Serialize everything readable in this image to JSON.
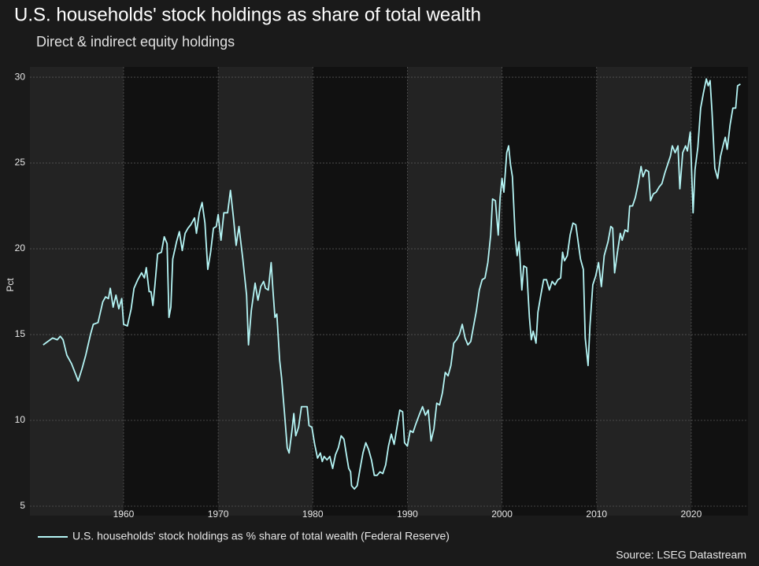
{
  "chart_data": {
    "type": "line",
    "title": "U.S. households' stock holdings as share of total wealth",
    "subtitle": "Direct & indirect equity holdings",
    "y_label": "Pct",
    "source": "Source: LSEG Datastream",
    "xlim": [
      1950.1,
      2026
    ],
    "xticks": [
      1960,
      1970,
      1980,
      1990,
      2000,
      2010,
      2020
    ],
    "ylim": [
      4.45,
      30.6
    ],
    "yticks": [
      5,
      10,
      15,
      20,
      25,
      30
    ],
    "grid": true,
    "x": [
      1951.5,
      1952.5,
      1953.0,
      1953.3,
      1953.6,
      1954,
      1954.5,
      1955,
      1955.2,
      1955.6,
      1956,
      1956.5,
      1956.8,
      1957.3,
      1957.8,
      1958.1,
      1958.4,
      1958.6,
      1958.9,
      1959.2,
      1959.5,
      1959.8,
      1960,
      1960.4,
      1960.8,
      1961.1,
      1961.5,
      1961.9,
      1962.2,
      1962.4,
      1962.7,
      1962.9,
      1963.1,
      1963.3,
      1963.6,
      1964,
      1964.3,
      1964.6,
      1964.8,
      1965,
      1965.2,
      1965.6,
      1965.9,
      1966.2,
      1966.5,
      1966.8,
      1967.1,
      1967.5,
      1967.7,
      1968,
      1968.3,
      1968.6,
      1968.9,
      1969.2,
      1969.5,
      1969.8,
      1970,
      1970.3,
      1970.6,
      1971,
      1971.3,
      1971.6,
      1971.9,
      1972.2,
      1972.6,
      1973,
      1973.2,
      1973.5,
      1973.9,
      1974.2,
      1974.5,
      1974.8,
      1975.0,
      1975.3,
      1975.6,
      1975.8,
      1976,
      1976.2,
      1976.5,
      1976.7,
      1977,
      1977.3,
      1977.5,
      1977.8,
      1978,
      1978.2,
      1978.5,
      1978.8,
      1979.1,
      1979.4,
      1979.6,
      1979.9,
      1980.2,
      1980.5,
      1980.8,
      1981,
      1981.2,
      1981.5,
      1981.8,
      1982.1,
      1982.4,
      1982.7,
      1983,
      1983.3,
      1983.5,
      1983.8,
      1984,
      1984.1,
      1984.4,
      1984.7,
      1985,
      1985.3,
      1985.6,
      1985.9,
      1986.2,
      1986.5,
      1986.8,
      1987.1,
      1987.4,
      1987.7,
      1988,
      1988.3,
      1988.6,
      1988.9,
      1989.2,
      1989.5,
      1989.7,
      1990,
      1990.3,
      1990.6,
      1990.9,
      1991.3,
      1991.6,
      1991.9,
      1992.2,
      1992.5,
      1992.8,
      1993.1,
      1993.4,
      1993.7,
      1994,
      1994.3,
      1994.6,
      1994.9,
      1995.2,
      1995.5,
      1995.8,
      1996.1,
      1996.4,
      1996.7,
      1997,
      1997.3,
      1997.6,
      1997.9,
      1998.2,
      1998.5,
      1998.8,
      1999,
      1999.3,
      1999.6,
      1999.8,
      2000,
      2000.2,
      2000.5,
      2000.7,
      2000.9,
      2001.1,
      2001.4,
      2001.6,
      2001.8,
      2002.1,
      2002.3,
      2002.6,
      2002.9,
      2003.1,
      2003.3,
      2003.6,
      2003.8,
      2004.1,
      2004.4,
      2004.7,
      2005,
      2005.3,
      2005.6,
      2005.9,
      2006.2,
      2006.4,
      2006.6,
      2006.9,
      2007.2,
      2007.5,
      2007.8,
      2008.1,
      2008.3,
      2008.6,
      2008.8,
      2009.1,
      2009.3,
      2009.6,
      2009.9,
      2010.2,
      2010.5,
      2010.8,
      2011.2,
      2011.5,
      2011.7,
      2011.9,
      2012.2,
      2012.5,
      2012.7,
      2013,
      2013.3,
      2013.5,
      2013.8,
      2014.1,
      2014.4,
      2014.7,
      2014.9,
      2015.2,
      2015.5,
      2015.7,
      2016,
      2016.3,
      2016.6,
      2016.9,
      2017.2,
      2017.5,
      2017.8,
      2018,
      2018.3,
      2018.6,
      2018.8,
      2019.1,
      2019.4,
      2019.6,
      2019.9,
      2020.2,
      2020.4,
      2020.7,
      2021,
      2021.3,
      2021.6,
      2021.8,
      2022.0,
      2022.2,
      2022.5,
      2022.8,
      2023.1,
      2023.4,
      2023.6,
      2023.8,
      2024.1,
      2024.4,
      2024.7,
      2024.9,
      2025.2
    ],
    "series": [
      {
        "name": "U.S. households' stock holdings as % share of total wealth (Federal Reserve)",
        "color": "#b4f4f4",
        "values": [
          14.4,
          14.8,
          14.7,
          14.9,
          14.7,
          13.8,
          13.3,
          12.6,
          12.3,
          13.0,
          13.8,
          15.0,
          15.6,
          15.7,
          16.9,
          17.2,
          17.1,
          17.7,
          16.6,
          17.3,
          16.5,
          17.1,
          15.6,
          15.5,
          16.5,
          17.7,
          18.2,
          18.6,
          18.3,
          18.9,
          17.5,
          17.5,
          16.7,
          17.8,
          19.7,
          19.8,
          20.7,
          20.3,
          16.0,
          16.6,
          19.4,
          20.4,
          21.0,
          19.9,
          20.9,
          21.2,
          21.4,
          21.8,
          20.9,
          22.1,
          22.7,
          21.5,
          18.8,
          19.8,
          21.2,
          21.3,
          22.0,
          20.5,
          22.1,
          22.1,
          23.4,
          21.9,
          20.2,
          21.3,
          19.4,
          17.3,
          14.4,
          16.4,
          18.0,
          17.0,
          17.8,
          18.1,
          17.7,
          17.6,
          19.2,
          17.5,
          16.0,
          16.2,
          13.5,
          12.5,
          10.5,
          8.4,
          8.1,
          9.4,
          10.4,
          9.1,
          9.6,
          10.8,
          10.8,
          10.8,
          9.7,
          9.6,
          8.6,
          7.8,
          8.1,
          7.6,
          7.9,
          7.7,
          7.9,
          7.2,
          8.0,
          8.4,
          9.1,
          8.9,
          8.2,
          7.2,
          7.0,
          6.2,
          6.0,
          6.2,
          7.2,
          8.1,
          8.7,
          8.3,
          7.7,
          6.8,
          6.8,
          7.0,
          6.9,
          7.4,
          8.5,
          9.2,
          8.6,
          9.6,
          10.6,
          10.5,
          8.7,
          8.5,
          9.4,
          9.3,
          9.8,
          10.4,
          10.8,
          10.3,
          10.6,
          8.8,
          9.5,
          11.0,
          10.9,
          11.6,
          12.8,
          12.6,
          13.2,
          14.5,
          14.7,
          15.0,
          15.6,
          14.8,
          14.4,
          14.6,
          15.5,
          16.4,
          17.6,
          18.2,
          18.3,
          19.2,
          20.8,
          22.9,
          22.8,
          20.8,
          23.0,
          24.1,
          23.3,
          25.6,
          26.0,
          24.9,
          24.2,
          20.7,
          19.6,
          20.4,
          17.6,
          19.0,
          18.9,
          16.0,
          14.7,
          15.2,
          14.5,
          16.3,
          17.3,
          18.2,
          18.2,
          17.6,
          18.1,
          17.9,
          18.2,
          18.3,
          19.8,
          19.3,
          19.6,
          20.8,
          21.5,
          21.4,
          20.2,
          19.4,
          18.8,
          14.8,
          13.2,
          15.5,
          17.9,
          18.4,
          19.2,
          17.8,
          19.6,
          20.4,
          21.3,
          21.2,
          18.6,
          19.8,
          20.9,
          20.5,
          21.1,
          21.0,
          22.5,
          22.5,
          23.0,
          23.8,
          24.8,
          24.2,
          24.6,
          24.5,
          22.8,
          23.2,
          23.3,
          23.6,
          23.8,
          24.4,
          24.9,
          25.4,
          26.0,
          25.6,
          26.0,
          23.5,
          25.6,
          26.0,
          25.7,
          26.8,
          22.1,
          24.6,
          25.9,
          28.2,
          29.1,
          29.9,
          29.5,
          29.8,
          28.0,
          24.7,
          24.1,
          25.4,
          26.1,
          26.5,
          25.8,
          27.2,
          28.2,
          28.2,
          29.5,
          29.6
        ]
      }
    ]
  }
}
